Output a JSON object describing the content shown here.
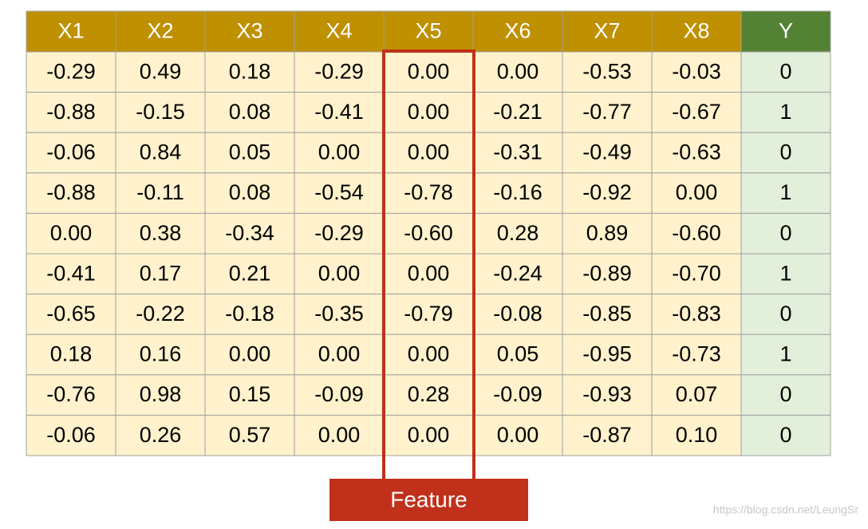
{
  "table": {
    "header": [
      "X1",
      "X2",
      "X3",
      "X4",
      "X5",
      "X6",
      "X7",
      "X8",
      "Y"
    ],
    "rows": [
      [
        "-0.29",
        "0.49",
        "0.18",
        "-0.29",
        "0.00",
        "0.00",
        "-0.53",
        "-0.03",
        "0"
      ],
      [
        "-0.88",
        "-0.15",
        "0.08",
        "-0.41",
        "0.00",
        "-0.21",
        "-0.77",
        "-0.67",
        "1"
      ],
      [
        "-0.06",
        "0.84",
        "0.05",
        "0.00",
        "0.00",
        "-0.31",
        "-0.49",
        "-0.63",
        "0"
      ],
      [
        "-0.88",
        "-0.11",
        "0.08",
        "-0.54",
        "-0.78",
        "-0.16",
        "-0.92",
        "0.00",
        "1"
      ],
      [
        "0.00",
        "0.38",
        "-0.34",
        "-0.29",
        "-0.60",
        "0.28",
        "0.89",
        "-0.60",
        "0"
      ],
      [
        "-0.41",
        "0.17",
        "0.21",
        "0.00",
        "0.00",
        "-0.24",
        "-0.89",
        "-0.70",
        "1"
      ],
      [
        "-0.65",
        "-0.22",
        "-0.18",
        "-0.35",
        "-0.79",
        "-0.08",
        "-0.85",
        "-0.83",
        "0"
      ],
      [
        "0.18",
        "0.16",
        "0.00",
        "0.00",
        "0.00",
        "0.05",
        "-0.95",
        "-0.73",
        "1"
      ],
      [
        "-0.76",
        "0.98",
        "0.15",
        "-0.09",
        "0.28",
        "-0.09",
        "-0.93",
        "0.07",
        "0"
      ],
      [
        "-0.06",
        "0.26",
        "0.57",
        "0.00",
        "0.00",
        "0.00",
        "-0.87",
        "0.10",
        "0"
      ]
    ]
  },
  "highlight": {
    "label": "Feature"
  },
  "watermark": "https://blog.csdn.net/LeungSr"
}
